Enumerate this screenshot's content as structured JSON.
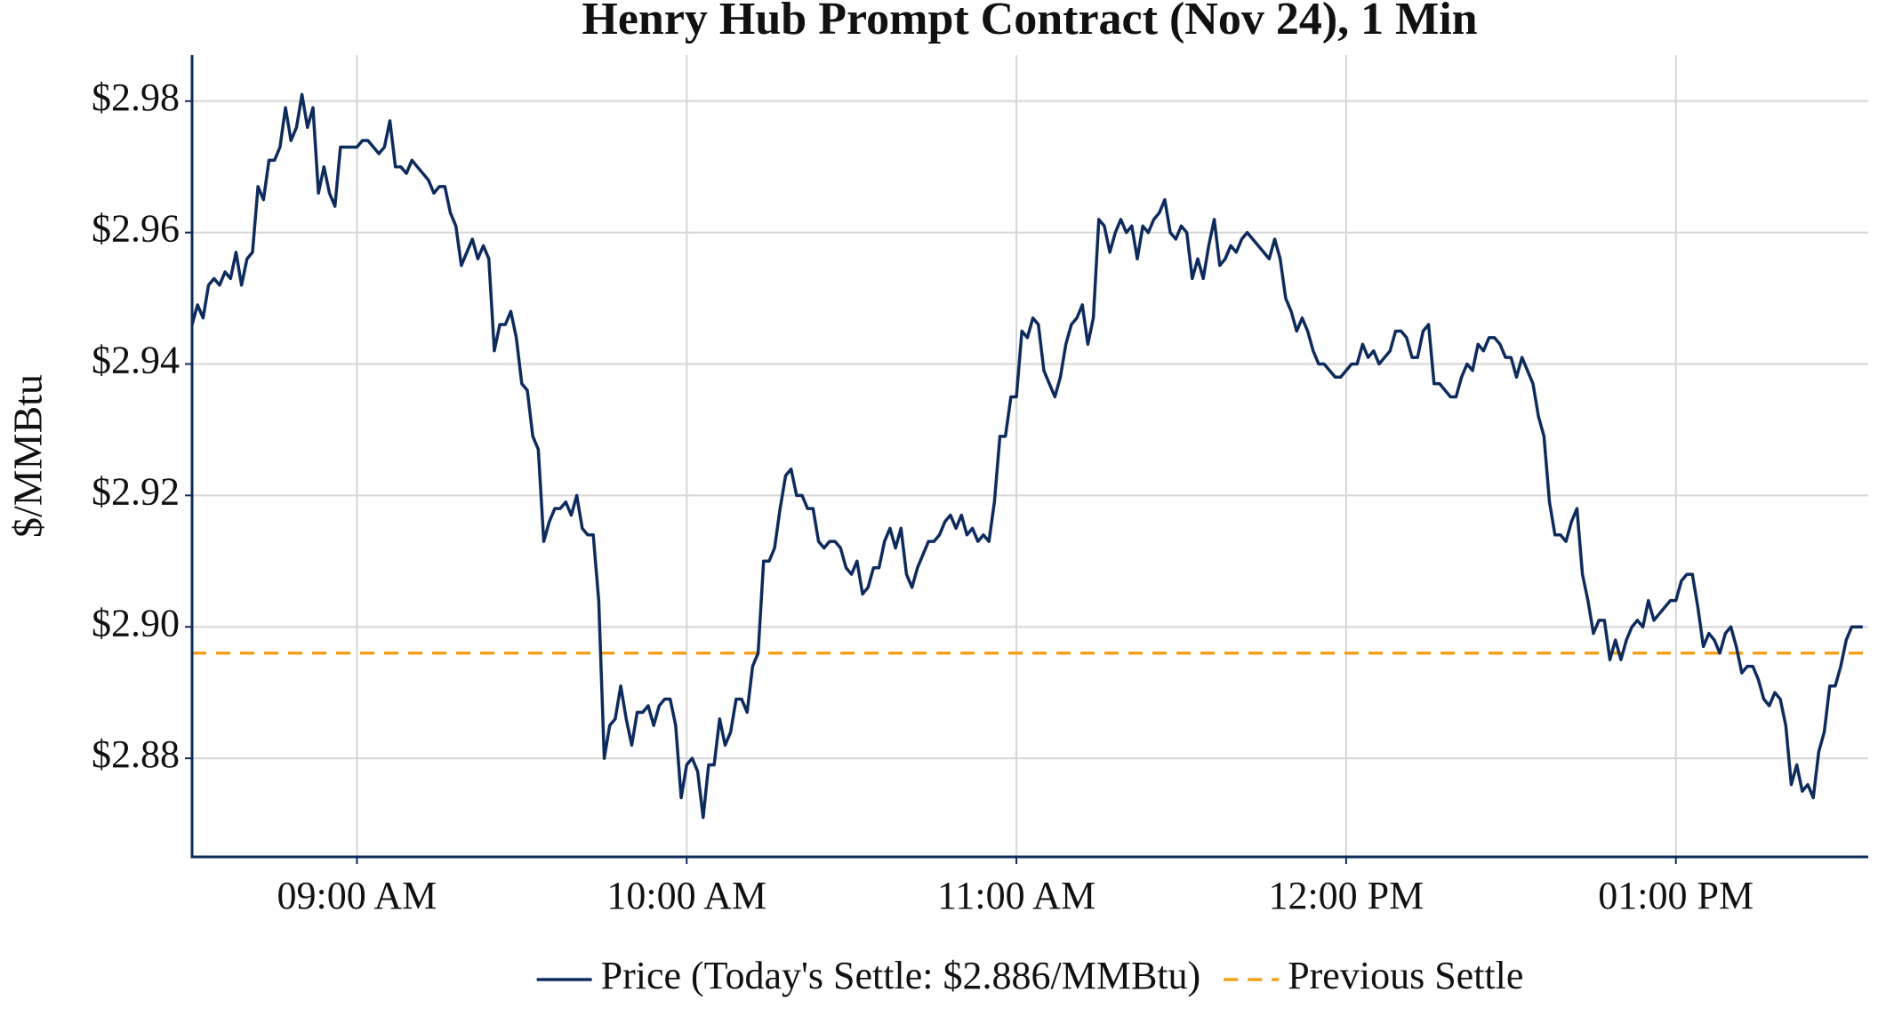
{
  "chart_data": {
    "type": "line",
    "title": "Henry Hub Prompt Contract (Nov 24), 1 Min",
    "y_label": "$/MMBtu",
    "x": [
      "08:30",
      "08:31",
      "08:32",
      "08:33",
      "08:34",
      "08:35",
      "08:36",
      "08:37",
      "08:38",
      "08:39",
      "08:40",
      "08:41",
      "08:42",
      "08:43",
      "08:44",
      "08:45",
      "08:46",
      "08:47",
      "08:48",
      "08:49",
      "08:50",
      "08:51",
      "08:52",
      "08:53",
      "08:54",
      "08:55",
      "08:56",
      "08:57",
      "08:58",
      "08:59",
      "09:00",
      "09:01",
      "09:02",
      "09:03",
      "09:04",
      "09:05",
      "09:06",
      "09:07",
      "09:08",
      "09:09",
      "09:10",
      "09:11",
      "09:12",
      "09:13",
      "09:14",
      "09:15",
      "09:16",
      "09:17",
      "09:18",
      "09:19",
      "09:20",
      "09:21",
      "09:22",
      "09:23",
      "09:24",
      "09:25",
      "09:26",
      "09:27",
      "09:28",
      "09:29",
      "09:30",
      "09:31",
      "09:32",
      "09:33",
      "09:34",
      "09:35",
      "09:36",
      "09:37",
      "09:38",
      "09:39",
      "09:40",
      "09:41",
      "09:42",
      "09:43",
      "09:44",
      "09:45",
      "09:46",
      "09:47",
      "09:48",
      "09:49",
      "09:50",
      "09:51",
      "09:52",
      "09:53",
      "09:54",
      "09:55",
      "09:56",
      "09:57",
      "09:58",
      "09:59",
      "10:00",
      "10:01",
      "10:02",
      "10:03",
      "10:04",
      "10:05",
      "10:06",
      "10:07",
      "10:08",
      "10:09",
      "10:10",
      "10:11",
      "10:12",
      "10:13",
      "10:14",
      "10:15",
      "10:16",
      "10:17",
      "10:18",
      "10:19",
      "10:20",
      "10:21",
      "10:22",
      "10:23",
      "10:24",
      "10:25",
      "10:26",
      "10:27",
      "10:28",
      "10:29",
      "10:30",
      "10:31",
      "10:32",
      "10:33",
      "10:34",
      "10:35",
      "10:36",
      "10:37",
      "10:38",
      "10:39",
      "10:40",
      "10:41",
      "10:42",
      "10:43",
      "10:44",
      "10:45",
      "10:46",
      "10:47",
      "10:48",
      "10:49",
      "10:50",
      "10:51",
      "10:52",
      "10:53",
      "10:54",
      "10:55",
      "10:56",
      "10:57",
      "10:58",
      "10:59",
      "11:00",
      "11:01",
      "11:02",
      "11:03",
      "11:04",
      "11:05",
      "11:06",
      "11:07",
      "11:08",
      "11:09",
      "11:10",
      "11:11",
      "11:12",
      "11:13",
      "11:14",
      "11:15",
      "11:16",
      "11:17",
      "11:18",
      "11:19",
      "11:20",
      "11:21",
      "11:22",
      "11:23",
      "11:24",
      "11:25",
      "11:26",
      "11:27",
      "11:28",
      "11:29",
      "11:30",
      "11:31",
      "11:32",
      "11:33",
      "11:34",
      "11:35",
      "11:36",
      "11:37",
      "11:38",
      "11:39",
      "11:40",
      "11:41",
      "11:42",
      "11:43",
      "11:44",
      "11:45",
      "11:46",
      "11:47",
      "11:48",
      "11:49",
      "11:50",
      "11:51",
      "11:52",
      "11:53",
      "11:54",
      "11:55",
      "11:56",
      "11:57",
      "11:58",
      "11:59",
      "12:00",
      "12:01",
      "12:02",
      "12:03",
      "12:04",
      "12:05",
      "12:06",
      "12:07",
      "12:08",
      "12:09",
      "12:10",
      "12:11",
      "12:12",
      "12:13",
      "12:14",
      "12:15",
      "12:16",
      "12:17",
      "12:18",
      "12:19",
      "12:20",
      "12:21",
      "12:22",
      "12:23",
      "12:24",
      "12:25",
      "12:26",
      "12:27",
      "12:28",
      "12:29",
      "12:30",
      "12:31",
      "12:32",
      "12:33",
      "12:34",
      "12:35",
      "12:36",
      "12:37",
      "12:38",
      "12:39",
      "12:40",
      "12:41",
      "12:42",
      "12:43",
      "12:44",
      "12:45",
      "12:46",
      "12:47",
      "12:48",
      "12:49",
      "12:50",
      "12:51",
      "12:52",
      "12:53",
      "12:54",
      "12:55",
      "12:56",
      "12:57",
      "12:58",
      "12:59",
      "13:00",
      "13:01",
      "13:02",
      "13:03",
      "13:04",
      "13:05",
      "13:06",
      "13:07",
      "13:08",
      "13:09",
      "13:10",
      "13:11",
      "13:12",
      "13:13",
      "13:14",
      "13:15",
      "13:16",
      "13:17",
      "13:18",
      "13:19",
      "13:20",
      "13:21",
      "13:22",
      "13:23",
      "13:24",
      "13:25",
      "13:26",
      "13:27",
      "13:28",
      "13:29",
      "13:30",
      "13:31",
      "13:32",
      "13:33",
      "13:34"
    ],
    "series": [
      {
        "name": "Price (Today's Settle: $2.886/MMBtu)",
        "color": "#0d2b5c",
        "values": [
          2.946,
          2.949,
          2.947,
          2.952,
          2.953,
          2.952,
          2.954,
          2.953,
          2.957,
          2.952,
          2.956,
          2.957,
          2.967,
          2.965,
          2.971,
          2.971,
          2.973,
          2.979,
          2.974,
          2.976,
          2.981,
          2.976,
          2.979,
          2.966,
          2.97,
          2.966,
          2.964,
          2.973,
          2.973,
          2.973,
          2.973,
          2.974,
          2.974,
          2.973,
          2.972,
          2.973,
          2.977,
          2.97,
          2.97,
          2.969,
          2.971,
          2.97,
          2.969,
          2.968,
          2.966,
          2.967,
          2.967,
          2.963,
          2.961,
          2.955,
          2.957,
          2.959,
          2.956,
          2.958,
          2.956,
          2.942,
          2.946,
          2.946,
          2.948,
          2.944,
          2.937,
          2.936,
          2.929,
          2.927,
          2.913,
          2.916,
          2.918,
          2.918,
          2.919,
          2.917,
          2.92,
          2.915,
          2.914,
          2.914,
          2.904,
          2.88,
          2.885,
          2.886,
          2.891,
          2.886,
          2.882,
          2.887,
          2.887,
          2.888,
          2.885,
          2.888,
          2.889,
          2.889,
          2.885,
          2.874,
          2.879,
          2.88,
          2.878,
          2.871,
          2.879,
          2.879,
          2.886,
          2.882,
          2.884,
          2.889,
          2.889,
          2.887,
          2.894,
          2.896,
          2.91,
          2.91,
          2.912,
          2.918,
          2.923,
          2.924,
          2.92,
          2.92,
          2.918,
          2.918,
          2.913,
          2.912,
          2.913,
          2.913,
          2.912,
          2.909,
          2.908,
          2.91,
          2.905,
          2.906,
          2.909,
          2.909,
          2.913,
          2.915,
          2.912,
          2.915,
          2.908,
          2.906,
          2.909,
          2.911,
          2.913,
          2.913,
          2.914,
          2.916,
          2.917,
          2.915,
          2.917,
          2.914,
          2.915,
          2.913,
          2.914,
          2.913,
          2.919,
          2.929,
          2.929,
          2.935,
          2.935,
          2.945,
          2.944,
          2.947,
          2.946,
          2.939,
          2.937,
          2.935,
          2.938,
          2.943,
          2.946,
          2.947,
          2.949,
          2.943,
          2.947,
          2.962,
          2.961,
          2.957,
          2.96,
          2.962,
          2.96,
          2.961,
          2.956,
          2.961,
          2.96,
          2.962,
          2.963,
          2.965,
          2.96,
          2.959,
          2.961,
          2.96,
          2.953,
          2.956,
          2.953,
          2.958,
          2.962,
          2.955,
          2.956,
          2.958,
          2.957,
          2.959,
          2.96,
          2.959,
          2.958,
          2.957,
          2.956,
          2.959,
          2.956,
          2.95,
          2.948,
          2.945,
          2.947,
          2.945,
          2.942,
          2.94,
          2.94,
          2.939,
          2.938,
          2.938,
          2.939,
          2.94,
          2.94,
          2.943,
          2.941,
          2.942,
          2.94,
          2.941,
          2.942,
          2.945,
          2.945,
          2.944,
          2.941,
          2.941,
          2.945,
          2.946,
          2.937,
          2.937,
          2.936,
          2.935,
          2.935,
          2.938,
          2.94,
          2.939,
          2.943,
          2.942,
          2.944,
          2.944,
          2.943,
          2.941,
          2.941,
          2.938,
          2.941,
          2.939,
          2.937,
          2.932,
          2.929,
          2.919,
          2.914,
          2.914,
          2.913,
          2.916,
          2.918,
          2.908,
          2.904,
          2.899,
          2.901,
          2.901,
          2.895,
          2.898,
          2.895,
          2.898,
          2.9,
          2.901,
          2.9,
          2.904,
          2.901,
          2.902,
          2.903,
          2.904,
          2.904,
          2.907,
          2.908,
          2.908,
          2.903,
          2.897,
          2.899,
          2.898,
          2.896,
          2.899,
          2.9,
          2.897,
          2.893,
          2.894,
          2.894,
          2.892,
          2.889,
          2.888,
          2.89,
          2.889,
          2.885,
          2.876,
          2.879,
          2.875,
          2.876,
          2.874,
          2.881,
          2.884,
          2.891,
          2.891,
          2.894,
          2.898,
          2.9,
          2.9,
          2.9
        ]
      }
    ],
    "reference_lines": [
      {
        "name": "Previous Settle",
        "value": 2.896,
        "color": "#f5a01a",
        "style": "dashed"
      }
    ],
    "xlim": [
      "08:30",
      "13:35"
    ],
    "xticks": [
      {
        "value": "09:00",
        "label": "09:00 AM"
      },
      {
        "value": "10:00",
        "label": "10:00 AM"
      },
      {
        "value": "11:00",
        "label": "11:00 AM"
      },
      {
        "value": "12:00",
        "label": "12:00 PM"
      },
      {
        "value": "13:00",
        "label": "01:00 PM"
      }
    ],
    "ylim": [
      2.865,
      2.987
    ],
    "yticks": [
      {
        "value": 2.88,
        "label": "$2.88"
      },
      {
        "value": 2.9,
        "label": "$2.90"
      },
      {
        "value": 2.92,
        "label": "$2.92"
      },
      {
        "value": 2.94,
        "label": "$2.94"
      },
      {
        "value": 2.96,
        "label": "$2.96"
      },
      {
        "value": 2.98,
        "label": "$2.98"
      }
    ],
    "grid": true,
    "legend": "bottom"
  }
}
